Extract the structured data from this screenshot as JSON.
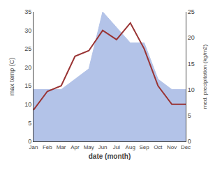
{
  "chart_data": {
    "type": "line",
    "categories": [
      "Jan",
      "Feb",
      "Mar",
      "Apr",
      "May",
      "Jun",
      "Jul",
      "Aug",
      "Sep",
      "Oct",
      "Nov",
      "Dec"
    ],
    "series": [
      {
        "type": "area",
        "color": "#b3c3e8",
        "axis": "y2",
        "values": [
          10.0,
          10.0,
          10.0,
          12.0,
          14.0,
          25.0,
          22.0,
          19.0,
          19.0,
          12.0,
          10.0,
          10.0
        ]
      },
      {
        "type": "line",
        "color": "#993333",
        "values": [
          8.5,
          13.5,
          15.0,
          23.0,
          24.5,
          30.0,
          27.5,
          32.0,
          25.0,
          15.0,
          10.0,
          10.0
        ]
      }
    ],
    "xlabel": "date (month)",
    "ylabel": "max temp (C)",
    "y2label": "med. precipitation (kg/m2)",
    "ylim": [
      0,
      35
    ],
    "yticks": [
      0,
      5,
      10,
      15,
      20,
      25,
      30,
      35
    ],
    "y2lim": [
      0,
      25
    ],
    "y2ticks": [
      0,
      5,
      10,
      15,
      20,
      25
    ],
    "grid": false
  }
}
